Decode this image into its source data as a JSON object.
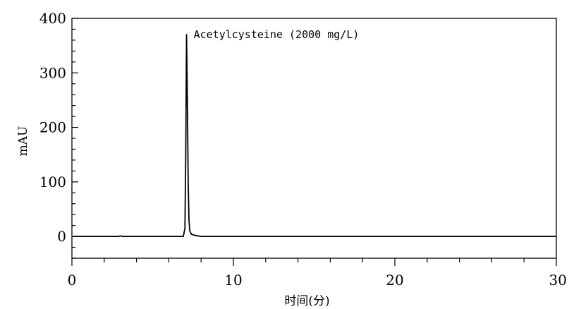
{
  "chart_data": {
    "type": "line",
    "title": "",
    "xlabel": "时间(分)",
    "ylabel": "mAU",
    "xlim": [
      0,
      30
    ],
    "ylim": [
      -40,
      400
    ],
    "x_ticks": [
      0,
      10,
      20,
      30
    ],
    "x_tick_labels": [
      "0",
      "10",
      "20",
      "30"
    ],
    "y_ticks": [
      0,
      100,
      200,
      300,
      400
    ],
    "y_tick_labels": [
      "0",
      "100",
      "200",
      "300",
      "400"
    ],
    "grid": false,
    "legend": "none",
    "line_color": "#000000",
    "series": [
      {
        "x": [
          0,
          2.9,
          3.0,
          3.1,
          6.9,
          7.0,
          7.05,
          7.1,
          7.15,
          7.2,
          7.25,
          7.3,
          7.4,
          7.6,
          8.0,
          30
        ],
        "y": [
          0,
          0,
          1,
          0,
          0,
          15,
          150,
          370,
          250,
          100,
          30,
          10,
          4,
          2,
          0,
          0
        ]
      }
    ],
    "annotations": [
      {
        "text": "Acetylcysteine (2000 mg/L)",
        "x": 7.1,
        "y": 370
      }
    ]
  }
}
